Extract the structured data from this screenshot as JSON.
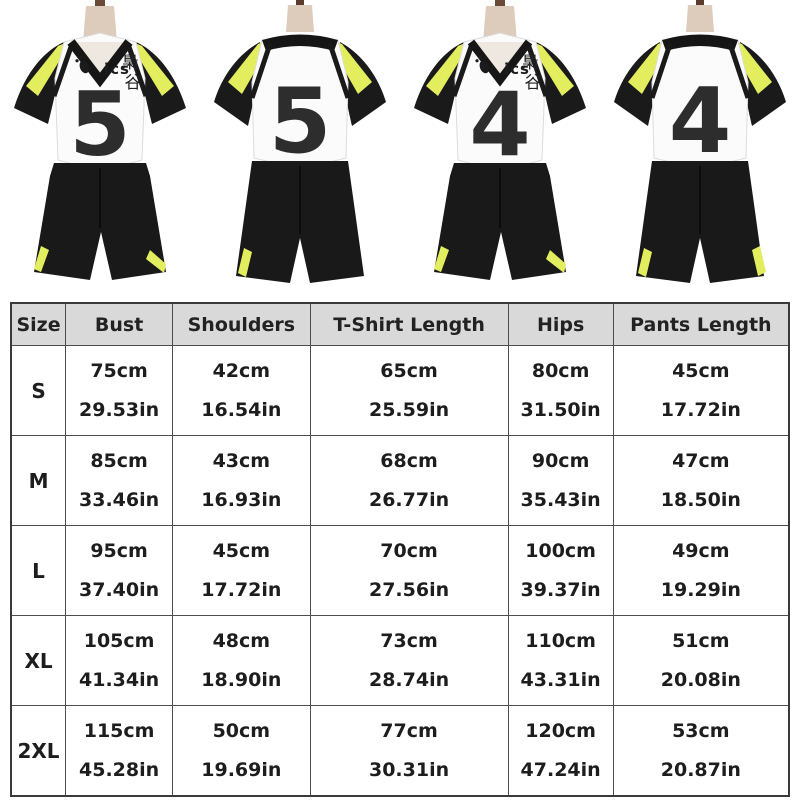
{
  "product": {
    "logo_text": "ics",
    "kanji_full": "梟谷",
    "kanji_top": "梟",
    "kanji_bottom": "谷",
    "colors": {
      "jersey_black": "#1a1a1a",
      "accent_yellow": "#e3ee5f",
      "jersey_white": "#fbfbfb",
      "number_ink": "#2d2d2d",
      "header_gray": "#d9d9d9"
    }
  },
  "photos": [
    {
      "view": "front",
      "number": "5"
    },
    {
      "view": "back",
      "number": "5"
    },
    {
      "view": "front",
      "number": "4"
    },
    {
      "view": "back",
      "number": "4"
    }
  ],
  "size_chart": {
    "columns": [
      "Size",
      "Bust",
      "Shoulders",
      "T-Shirt Length",
      "Hips",
      "Pants Length"
    ],
    "rows": [
      {
        "size": "S",
        "cells": [
          [
            "75cm",
            "29.53in"
          ],
          [
            "42cm",
            "16.54in"
          ],
          [
            "65cm",
            "25.59in"
          ],
          [
            "80cm",
            "31.50in"
          ],
          [
            "45cm",
            "17.72in"
          ]
        ]
      },
      {
        "size": "M",
        "cells": [
          [
            "85cm",
            "33.46in"
          ],
          [
            "43cm",
            "16.93in"
          ],
          [
            "68cm",
            "26.77in"
          ],
          [
            "90cm",
            "35.43in"
          ],
          [
            "47cm",
            "18.50in"
          ]
        ]
      },
      {
        "size": "L",
        "cells": [
          [
            "95cm",
            "37.40in"
          ],
          [
            "45cm",
            "17.72in"
          ],
          [
            "70cm",
            "27.56in"
          ],
          [
            "100cm",
            "39.37in"
          ],
          [
            "49cm",
            "19.29in"
          ]
        ]
      },
      {
        "size": "XL",
        "cells": [
          [
            "105cm",
            "41.34in"
          ],
          [
            "48cm",
            "18.90in"
          ],
          [
            "73cm",
            "28.74in"
          ],
          [
            "110cm",
            "43.31in"
          ],
          [
            "51cm",
            "20.08in"
          ]
        ]
      },
      {
        "size": "2XL",
        "cells": [
          [
            "115cm",
            "45.28in"
          ],
          [
            "50cm",
            "19.69in"
          ],
          [
            "77cm",
            "30.31in"
          ],
          [
            "120cm",
            "47.24in"
          ],
          [
            "53cm",
            "20.87in"
          ]
        ]
      }
    ]
  }
}
